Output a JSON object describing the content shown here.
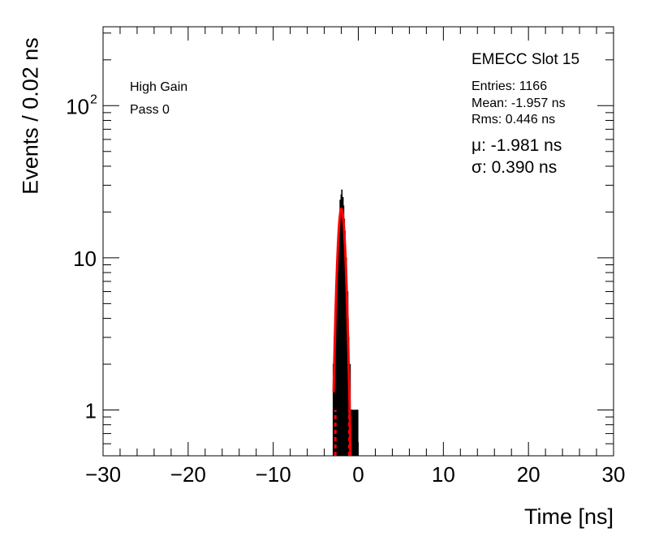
{
  "chart_data": {
    "type": "histogram",
    "title": "EMECC Slot 15",
    "xlabel": "Time [ns]",
    "ylabel": "Events / 0.02 ns",
    "xlim": [
      -30,
      30
    ],
    "ylim": [
      0.5,
      330
    ],
    "yscale": "log",
    "xticks": [
      -30,
      -20,
      -10,
      0,
      10,
      20,
      30
    ],
    "xtick_labels": [
      "−30",
      "−20",
      "−10",
      "0",
      "10",
      "20",
      "30"
    ],
    "yticks": [
      1,
      10,
      100
    ],
    "ytick_labels": [
      "1",
      "10",
      "10²"
    ],
    "grid": false,
    "bin_width": 0.02,
    "histogram": {
      "name": "data",
      "color": "#000000",
      "x": [
        -2.96,
        -2.92,
        -2.88,
        -2.84,
        -2.8,
        -2.76,
        -2.72,
        -2.68,
        -2.64,
        -2.6,
        -2.56,
        -2.52,
        -2.48,
        -2.44,
        -2.4,
        -2.36,
        -2.32,
        -2.28,
        -2.24,
        -2.2,
        -2.16,
        -2.12,
        -2.08,
        -2.04,
        -2.0,
        -1.96,
        -1.92,
        -1.88,
        -1.84,
        -1.8,
        -1.76,
        -1.72,
        -1.68,
        -1.64,
        -1.6,
        -1.56,
        -1.52,
        -1.48,
        -1.44,
        -1.4,
        -1.36,
        -1.32,
        -1.28,
        -1.24,
        -1.2,
        -1.16,
        -1.12,
        -1.08,
        -1.04,
        -1.0,
        -0.96,
        -0.92,
        -0.88,
        -0.84,
        -0.8,
        -0.76,
        -0.72,
        -0.68,
        -0.64,
        -0.6,
        -0.5,
        -0.4,
        -0.3,
        -0.2,
        -0.1,
        0.0
      ],
      "y": [
        2,
        1,
        1,
        3,
        2,
        3,
        5,
        4,
        6,
        7,
        6,
        8,
        11,
        12,
        10,
        14,
        17,
        15,
        18,
        19,
        24,
        22,
        20,
        26,
        21,
        28,
        19,
        23,
        25,
        20,
        22,
        17,
        18,
        14,
        15,
        12,
        11,
        9,
        10,
        7,
        6,
        5,
        6,
        4,
        3,
        3,
        2,
        2,
        1,
        2,
        1,
        1,
        1,
        1,
        1,
        1,
        1,
        0,
        1,
        0,
        1,
        1,
        1,
        1,
        1,
        0
      ]
    },
    "fit": {
      "name": "gaussian fit",
      "color": "#ff0000",
      "mu": -1.981,
      "sigma": 0.39,
      "amplitude": 21,
      "range": [
        -2.9,
        -0.9
      ]
    }
  },
  "stats": {
    "label": "EMECC Slot 15",
    "entries": "Entries: 1166",
    "mean": "Mean: -1.957 ns",
    "rms": "Rms: 0.446 ns",
    "mu": "μ: -1.981 ns",
    "sigma": "σ: 0.390 ns"
  },
  "run_info": {
    "gain": "High Gain",
    "pass": "Pass 0"
  }
}
